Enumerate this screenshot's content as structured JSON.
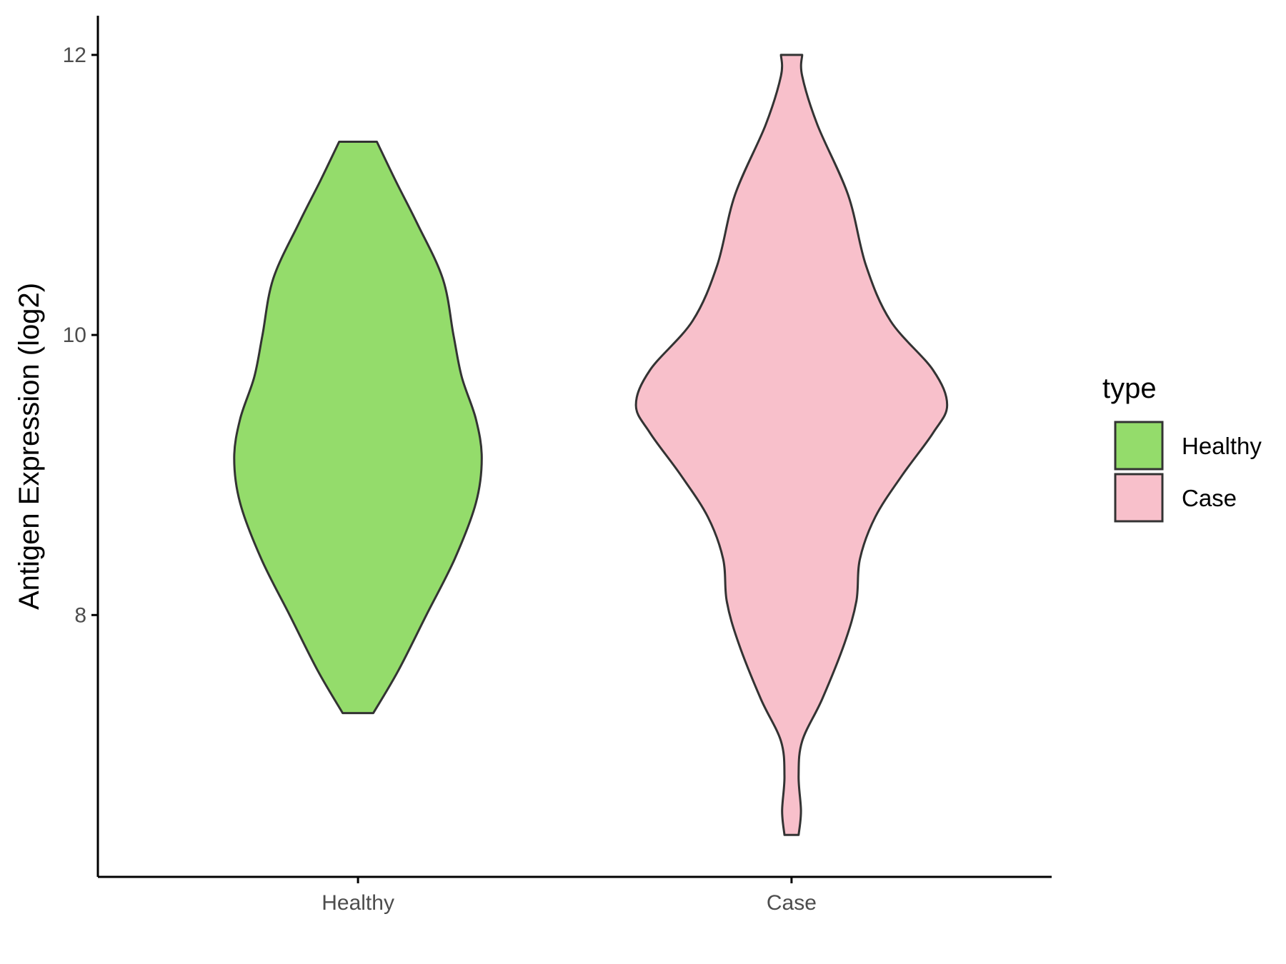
{
  "chart_data": {
    "type": "violin",
    "ylabel": "Antigen Expression (log2)",
    "xlabel": "",
    "categories": [
      "Healthy",
      "Case"
    ],
    "y_ticks": [
      8,
      10,
      12
    ],
    "y_tick_labels": [
      "8",
      "10",
      "12"
    ],
    "ylim": [
      6.13,
      12.28
    ],
    "grid": false,
    "legend": {
      "title": "type",
      "position": "right",
      "entries": [
        "Healthy",
        "Case"
      ]
    },
    "colors": {
      "Healthy": "#94dc6b",
      "Case": "#f8c0cb",
      "outline": "#333333"
    },
    "series": [
      {
        "name": "Healthy",
        "y_min": 7.3,
        "y_max": 11.38,
        "density_profile": [
          [
            7.3,
            0.13
          ],
          [
            7.6,
            0.34
          ],
          [
            8.0,
            0.58
          ],
          [
            8.4,
            0.82
          ],
          [
            8.8,
            1.0
          ],
          [
            9.12,
            1.05
          ],
          [
            9.4,
            1.0
          ],
          [
            9.7,
            0.88
          ],
          [
            10.0,
            0.81
          ],
          [
            10.4,
            0.72
          ],
          [
            10.8,
            0.5
          ],
          [
            11.1,
            0.32
          ],
          [
            11.38,
            0.16
          ]
        ]
      },
      {
        "name": "Case",
        "y_min": 6.43,
        "y_max": 12.0,
        "density_profile": [
          [
            6.43,
            0.06
          ],
          [
            6.6,
            0.08
          ],
          [
            6.85,
            0.06
          ],
          [
            7.1,
            0.09
          ],
          [
            7.4,
            0.26
          ],
          [
            7.8,
            0.45
          ],
          [
            8.1,
            0.55
          ],
          [
            8.4,
            0.58
          ],
          [
            8.7,
            0.71
          ],
          [
            9.0,
            0.94
          ],
          [
            9.3,
            1.2
          ],
          [
            9.5,
            1.32
          ],
          [
            9.75,
            1.2
          ],
          [
            10.1,
            0.84
          ],
          [
            10.5,
            0.63
          ],
          [
            11.0,
            0.48
          ],
          [
            11.5,
            0.22
          ],
          [
            11.85,
            0.09
          ],
          [
            12.0,
            0.09
          ]
        ]
      }
    ]
  }
}
